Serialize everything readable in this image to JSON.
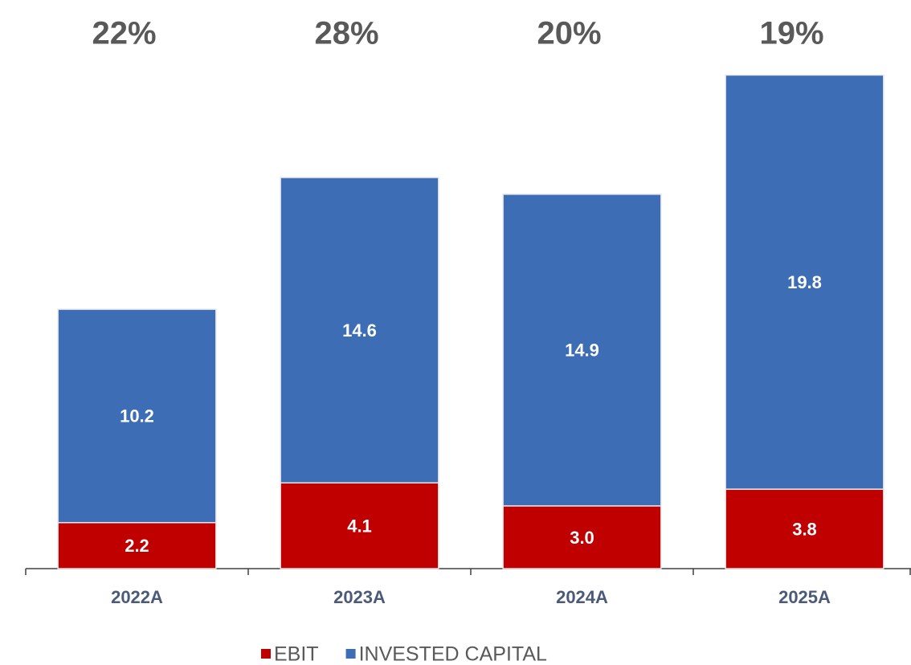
{
  "chart_data": {
    "type": "stacked_bar",
    "categories": [
      "2022A",
      "2023A",
      "2024A",
      "2025A"
    ],
    "series": [
      {
        "name": "EBIT",
        "color": "#c00000",
        "values": [
          2.2,
          4.1,
          3.0,
          3.8
        ],
        "value_labels": [
          "2.2",
          "4.1",
          "3.0",
          "3.8"
        ]
      },
      {
        "name": "INVESTED CAPITAL",
        "color": "#3d6db5",
        "values": [
          10.2,
          14.6,
          14.9,
          19.8
        ],
        "value_labels": [
          "10.2",
          "14.6",
          "14.9",
          "19.8"
        ]
      }
    ],
    "annotations": [
      "22%",
      "28%",
      "20%",
      "19%"
    ],
    "ylim": [
      0,
      25
    ],
    "legend": "bottom"
  }
}
